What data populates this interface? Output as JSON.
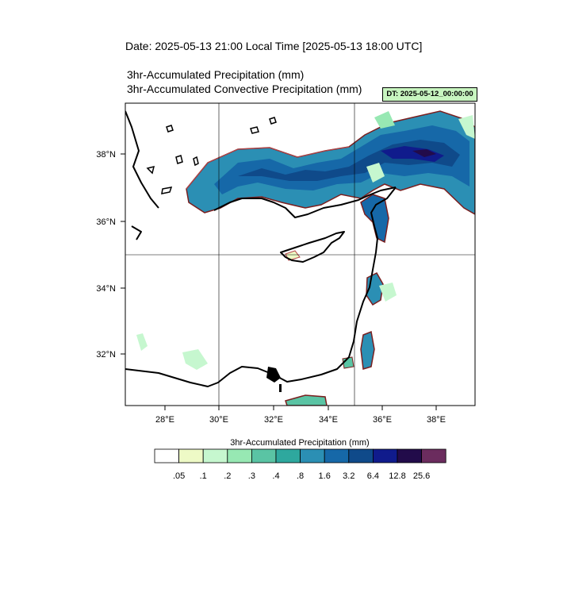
{
  "header": {
    "date_line": "Date: 2025-05-13  21:00 Local Time [2025-05-13  18:00 UTC]",
    "field_1": "3hr-Accumulated Precipitation   (mm)",
    "field_2": "3hr-Accumulated Convective Precipitation   (mm)",
    "dt_label": "DT: 2025-05-12_00:00:00"
  },
  "map": {
    "lon_ticks": [
      "28°E",
      "30°E",
      "32°E",
      "34°E",
      "36°E",
      "38°E"
    ],
    "lat_ticks": [
      "38°N",
      "36°N",
      "34°N",
      "32°N"
    ],
    "grid_lines": {
      "lon": [
        "30°E",
        "35°E"
      ],
      "lat": [
        "35°N"
      ]
    },
    "extent": {
      "lon_min": 26.7,
      "lon_max": 39.4,
      "lat_min": 30.4,
      "lat_max": 39.5
    }
  },
  "legend": {
    "title": "3hr-Accumulated Precipitation   (mm)",
    "levels": [
      ".05",
      ".1",
      ".2",
      ".3",
      ".4",
      ".8",
      "1.6",
      "3.2",
      "6.4",
      "12.8",
      "25.6"
    ],
    "colors": [
      "#ffffff",
      "#eefac6",
      "#c6f7cf",
      "#97e8b3",
      "#5ac4a4",
      "#2ea89e",
      "#2b8fb4",
      "#1668a8",
      "#0f4a8a",
      "#101b8c",
      "#220b4a",
      "#6b2c5e"
    ]
  }
}
